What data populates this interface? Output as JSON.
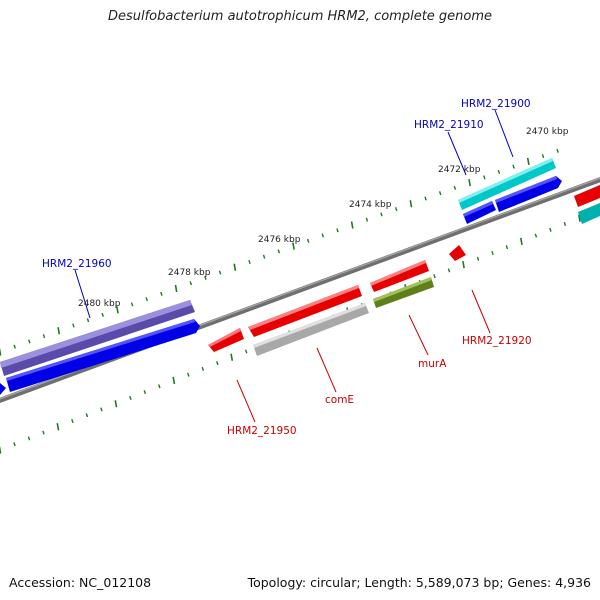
{
  "title": "Desulfobacterium autotrophicum HRM2, complete genome",
  "footer": {
    "accession_label": "Accession:",
    "accession": "NC_012108",
    "topology_label": "Topology:",
    "topology": "circular",
    "length_label": "Length:",
    "length": "5,589,073 bp",
    "genes_label": "Genes:",
    "genes": "4,936"
  },
  "colors": {
    "backbone": "#7a7a7a",
    "tick": "#1a7a1a",
    "forward_label": "#0000cc",
    "reverse_label": "#cc0000",
    "blue_gene": "#0000ee",
    "cyan_gene": "#00d8d8",
    "purple_gene": "#6655bb",
    "red_gene": "#ee0000",
    "gray_gene": "#bbbbbb",
    "olive_gene": "#6b8e23"
  },
  "ruler_labels": [
    {
      "kbp": 2470,
      "text": "2470 kbp"
    },
    {
      "kbp": 2472,
      "text": "2472 kbp"
    },
    {
      "kbp": 2474,
      "text": "2474 kbp"
    },
    {
      "kbp": 2476,
      "text": "2476 kbp"
    },
    {
      "kbp": 2478,
      "text": "2478 kbp"
    },
    {
      "kbp": 2480,
      "text": "2480 kbp"
    }
  ],
  "gene_labels": [
    {
      "text": "HRM2_21900",
      "strand": "forward"
    },
    {
      "text": "HRM2_21910",
      "strand": "forward"
    },
    {
      "text": "HRM2_21960",
      "strand": "forward"
    },
    {
      "text": "HRM2_21920",
      "strand": "reverse"
    },
    {
      "text": "murA",
      "strand": "reverse"
    },
    {
      "text": "comE",
      "strand": "reverse"
    },
    {
      "text": "HRM2_21950",
      "strand": "reverse"
    }
  ]
}
